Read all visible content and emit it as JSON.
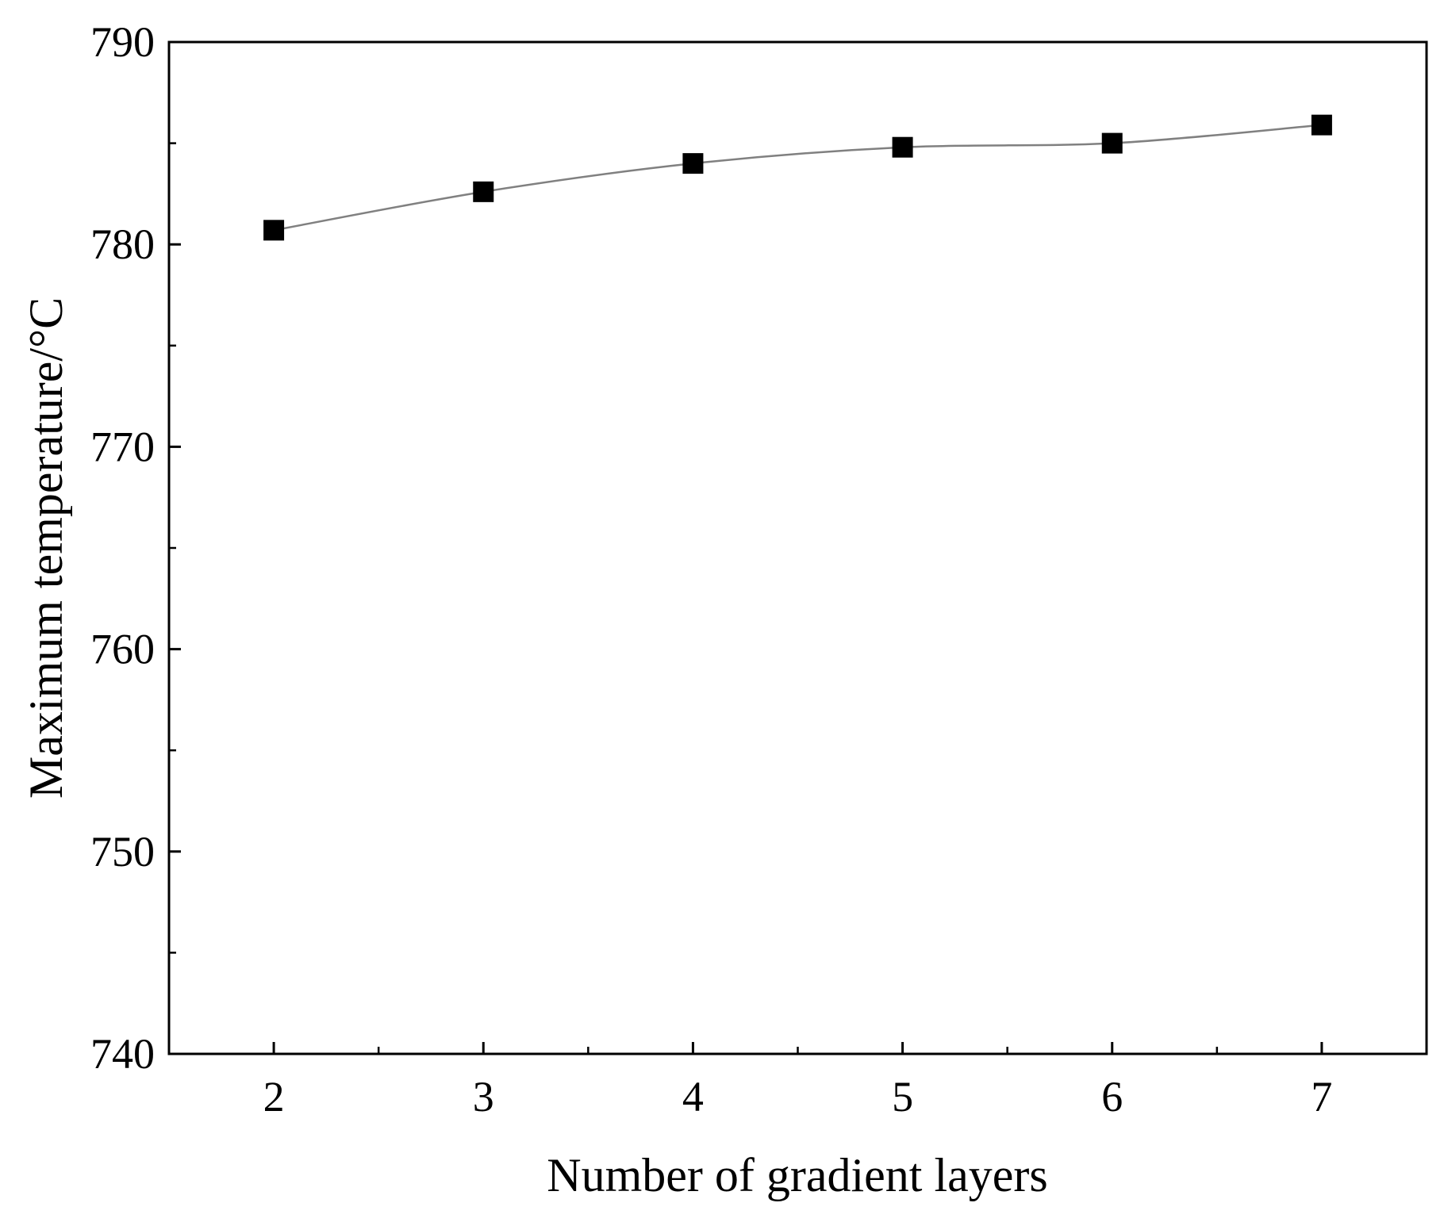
{
  "chart_data": {
    "type": "line",
    "title": "",
    "xlabel": "Number of gradient layers",
    "ylabel": "Maximum temperature/°C",
    "x": [
      2,
      3,
      4,
      5,
      6,
      7
    ],
    "x_tick_labels": [
      "2",
      "3",
      "4",
      "5",
      "6",
      "7"
    ],
    "y_tick_labels": [
      "740",
      "750",
      "760",
      "770",
      "780",
      "790"
    ],
    "xlim": [
      1.5,
      7.5
    ],
    "ylim": [
      740,
      790
    ],
    "y_major_ticks": [
      740,
      750,
      760,
      770,
      780,
      790
    ],
    "y_minor_ticks": [
      745,
      755,
      765,
      775,
      785
    ],
    "series": [
      {
        "values": [
          780.7,
          782.6,
          784.0,
          784.8,
          785.0,
          785.9
        ],
        "marker": "square",
        "marker_color": "#000000",
        "line_color": "#808080"
      }
    ],
    "grid": false,
    "legend": "none"
  }
}
